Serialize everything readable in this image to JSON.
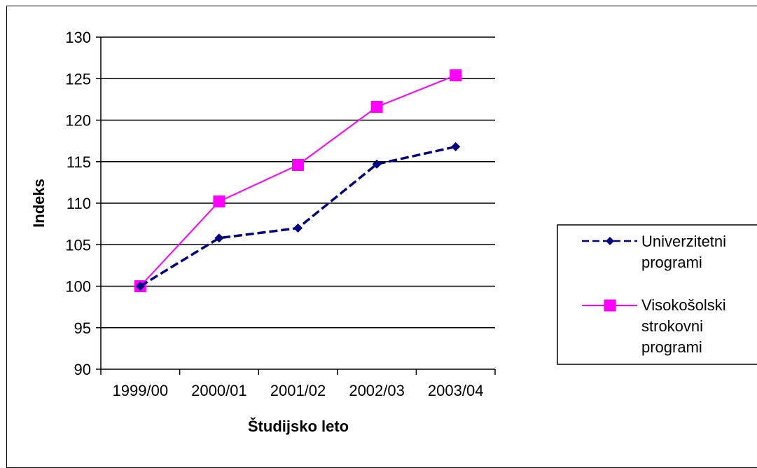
{
  "chart_data": {
    "type": "line",
    "title": "",
    "xlabel": "Študijsko leto",
    "ylabel": "Indeks",
    "categories": [
      "1999/00",
      "2000/01",
      "2001/02",
      "2002/03",
      "2003/04"
    ],
    "ylim": [
      90,
      130
    ],
    "yticks": [
      "90",
      "95",
      "100",
      "105",
      "110",
      "115",
      "120",
      "125",
      "130"
    ],
    "grid": true,
    "legend_position": "right",
    "series": [
      {
        "name": "Univerzitetni programi",
        "name_lines": [
          "Univerzitetni",
          "programi"
        ],
        "values": [
          100,
          105.8,
          107.0,
          114.7,
          116.8
        ],
        "color": "#000080",
        "marker": "diamond",
        "line_style": "dashed"
      },
      {
        "name": "Visokošolski strokovni programi",
        "name_lines": [
          "Visokošolski",
          "strokovni",
          "programi"
        ],
        "values": [
          100,
          110.2,
          114.6,
          121.6,
          125.4
        ],
        "color": "#ff00ff",
        "marker": "square",
        "line_style": "solid"
      }
    ]
  }
}
